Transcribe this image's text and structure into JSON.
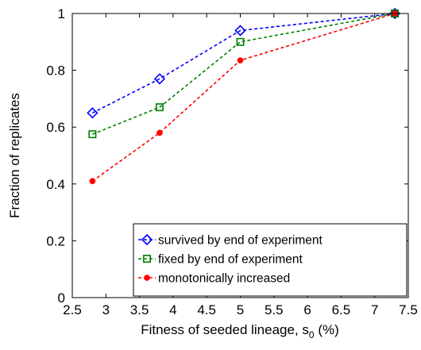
{
  "chart_data": {
    "type": "line",
    "xlabel": "Fitness of seeded lineage, s",
    "xlabel_sub": "0",
    "xlabel_unit": " (%)",
    "ylabel": "Fraction of replicates",
    "xlim": [
      2.5,
      7.5
    ],
    "ylim": [
      0,
      1
    ],
    "x_ticks": [
      2.5,
      3,
      3.5,
      4,
      4.5,
      5,
      5.5,
      6,
      6.5,
      7,
      7.5
    ],
    "x_tick_labels": [
      "2.5",
      "3",
      "3.5",
      "4",
      "4.5",
      "5",
      "5.5",
      "6",
      "6.5",
      "7",
      "7.5"
    ],
    "y_ticks": [
      0,
      0.2,
      0.4,
      0.6,
      0.8,
      1
    ],
    "y_tick_labels": [
      "0",
      "0.2",
      "0.4",
      "0.6",
      "0.8",
      "1"
    ],
    "grid": false,
    "legend_position": "bottom-right",
    "x": [
      2.8,
      3.8,
      5.0,
      7.3
    ],
    "series": [
      {
        "name": "survived by end of experiment",
        "color": "#0000ff",
        "marker": "diamond",
        "values": [
          0.65,
          0.77,
          0.94,
          1.0
        ]
      },
      {
        "name": "fixed by end of experiment",
        "color": "#008000",
        "marker": "square",
        "values": [
          0.575,
          0.67,
          0.9,
          1.0
        ]
      },
      {
        "name": "monotonically increased",
        "color": "#ff0000",
        "marker": "dot",
        "values": [
          0.41,
          0.58,
          0.835,
          1.0
        ]
      }
    ]
  }
}
